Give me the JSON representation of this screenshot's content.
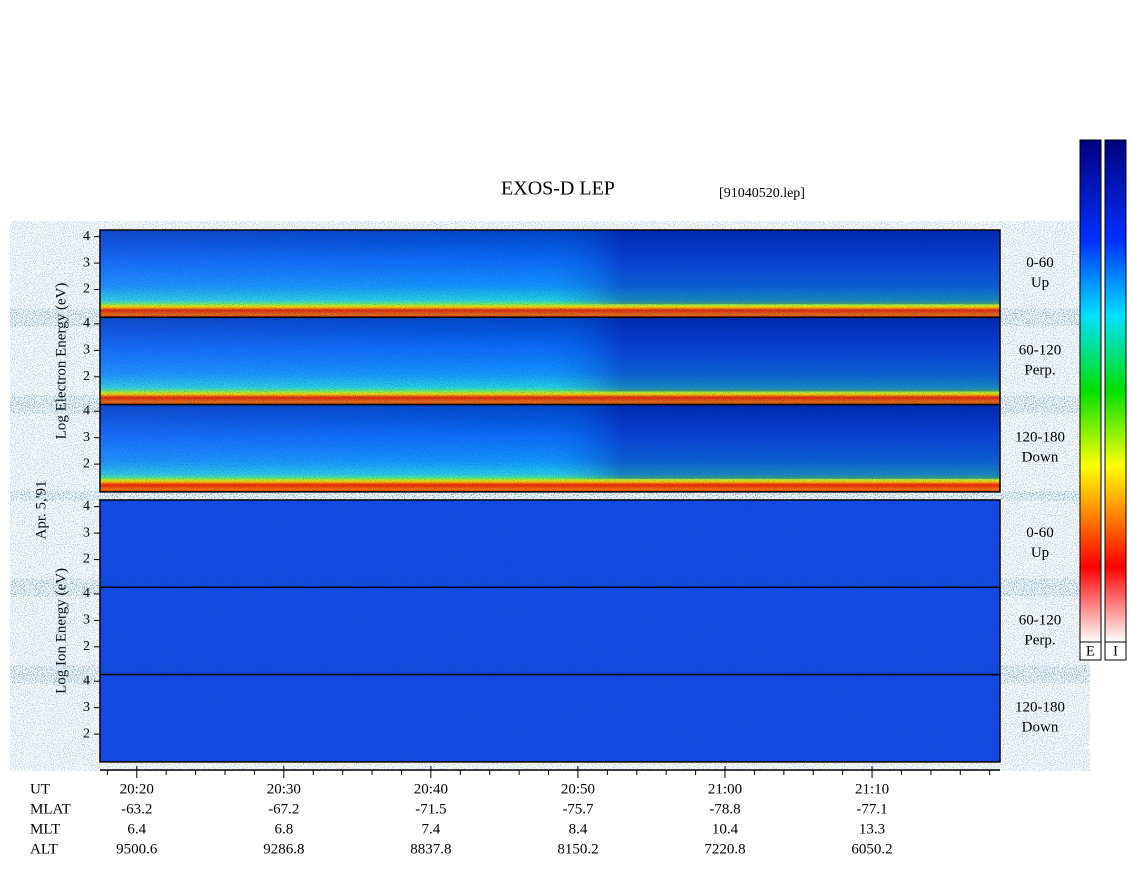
{
  "chart_data": {
    "type": "spectrogram",
    "title": "EXOS-D LEP",
    "subtitle": "[91040520.lep]",
    "date_label": "Apr. 5,'91",
    "x_row_label": "UT",
    "xlim": [
      1217.5,
      1278.7
    ],
    "xticks": [
      {
        "value": 1220,
        "label": "20:20"
      },
      {
        "value": 1230,
        "label": "20:30"
      },
      {
        "value": 1240,
        "label": "20:40"
      },
      {
        "value": 1250,
        "label": "20:50"
      },
      {
        "value": 1260,
        "label": "21:00"
      },
      {
        "value": 1270,
        "label": "21:10"
      }
    ],
    "xminor_ticks": [
      1218,
      1222,
      1224,
      1226,
      1228,
      1232,
      1234,
      1236,
      1238,
      1242,
      1244,
      1246,
      1248,
      1252,
      1254,
      1256,
      1258,
      1262,
      1264,
      1266,
      1268,
      1272,
      1274,
      1276,
      1278
    ],
    "ylim": [
      0.95,
      4.25
    ],
    "yticks": [
      2,
      3,
      4
    ],
    "groups": [
      {
        "ylabel": "Log Electron Energy (eV)",
        "panels": [
          {
            "angle": "0-60",
            "direction": "Up"
          },
          {
            "angle": "60-120",
            "direction": "Perp."
          },
          {
            "angle": "120-180",
            "direction": "Down"
          }
        ]
      },
      {
        "ylabel": "Log Ion Energy (eV)",
        "panels": [
          {
            "angle": "0-60",
            "direction": "Up"
          },
          {
            "angle": "60-120",
            "direction": "Perp."
          },
          {
            "angle": "120-180",
            "direction": "Down"
          }
        ]
      }
    ],
    "ephemeris": [
      {
        "name": "MLAT",
        "values": [
          -63.2,
          -67.2,
          -71.5,
          -75.7,
          -78.8,
          -77.1
        ]
      },
      {
        "name": "MLT",
        "values": [
          6.4,
          6.8,
          7.4,
          8.4,
          10.4,
          13.3
        ]
      },
      {
        "name": "ALT",
        "values": [
          9500.6,
          9286.8,
          8837.8,
          8150.2,
          7220.8,
          6050.2
        ]
      }
    ],
    "colorbars": [
      {
        "label": "E"
      },
      {
        "label": "I"
      }
    ]
  }
}
